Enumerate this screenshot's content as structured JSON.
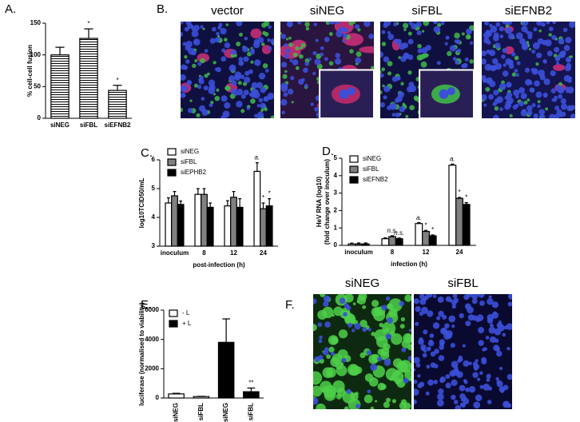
{
  "chart_data": [
    {
      "panel": "A.",
      "type": "bar",
      "categories": [
        "siNEG",
        "siFBL",
        "siEFNB2"
      ],
      "series": [
        {
          "color": "#ffffff",
          "hatch": true,
          "values": [
            100,
            126,
            44
          ],
          "errors": [
            12,
            15,
            8
          ]
        }
      ],
      "ylim": [
        0,
        150
      ],
      "yticks": [
        0,
        50,
        100,
        150
      ],
      "ylabel": "% cell-cell fusion",
      "annotations": [
        {
          "text": "*",
          "category": 1,
          "series": 0
        },
        {
          "text": "*",
          "category": 2,
          "series": 0
        }
      ]
    },
    {
      "panel": "C.",
      "type": "bar",
      "categories": [
        "inoculum",
        "8",
        "12",
        "24"
      ],
      "series": [
        {
          "name": "siNEG",
          "color": "#ffffff",
          "values": [
            4.5,
            4.8,
            4.4,
            5.6
          ],
          "errors": [
            0.18,
            0.2,
            0.18,
            0.3
          ]
        },
        {
          "name": "siFBL",
          "color": "#808080",
          "values": [
            4.75,
            4.8,
            4.7,
            4.3
          ],
          "errors": [
            0.15,
            0.2,
            0.2,
            0.2
          ]
        },
        {
          "name": "siEPHB2",
          "color": "#000000",
          "values": [
            4.45,
            4.35,
            4.35,
            4.4
          ],
          "errors": [
            0.12,
            0.15,
            0.3,
            0.25
          ]
        }
      ],
      "ylim": [
        3,
        6
      ],
      "yticks": [
        3,
        4,
        5,
        6
      ],
      "ylabel": "log10TCID50/mL",
      "xlabel": "post-infection (h)",
      "legend": "upper left",
      "annotations": [
        {
          "text": "a.",
          "category": 3,
          "series": 0
        },
        {
          "text": "*",
          "category": 3,
          "series": 1
        },
        {
          "text": "*",
          "category": 3,
          "series": 2
        }
      ]
    },
    {
      "panel": "D.",
      "type": "bar",
      "categories": [
        "inoculum",
        "8",
        "12",
        "24"
      ],
      "series": [
        {
          "name": "siNEG",
          "color": "#ffffff",
          "values": [
            0.08,
            0.38,
            1.25,
            4.6
          ],
          "errors": [
            0.05,
            0.05,
            0.05,
            0.06
          ]
        },
        {
          "name": "siFBL",
          "color": "#808080",
          "values": [
            0.08,
            0.5,
            0.8,
            2.7
          ],
          "errors": [
            0.06,
            0.05,
            0.06,
            0.05
          ]
        },
        {
          "name": "siEFNB2",
          "color": "#000000",
          "values": [
            0.08,
            0.38,
            0.55,
            2.35
          ],
          "errors": [
            0.06,
            0.04,
            0.05,
            0.1
          ]
        }
      ],
      "ylim": [
        0,
        5
      ],
      "yticks": [
        0,
        1,
        2,
        3,
        4,
        5
      ],
      "ylabel": [
        "HeV RNA (log10)",
        "(fold change over inoculum)"
      ],
      "xlabel": "infection (h)",
      "legend": "upper left",
      "annotations": [
        {
          "text": "n.s.",
          "category": 1,
          "series": 1
        },
        {
          "text": "n.s.",
          "category": 1,
          "series": 2
        },
        {
          "text": "a.",
          "category": 2,
          "series": 0
        },
        {
          "text": "*",
          "category": 2,
          "series": 1
        },
        {
          "text": "*",
          "category": 2,
          "series": 2
        },
        {
          "text": "a.",
          "category": 3,
          "series": 0
        },
        {
          "text": "*",
          "category": 3,
          "series": 1
        },
        {
          "text": "*",
          "category": 3,
          "series": 2
        }
      ]
    },
    {
      "panel": "E.",
      "type": "bar",
      "categories": [
        "siNEG",
        "siFBL",
        "siNEG",
        "siFBL"
      ],
      "series": [
        {
          "name": "- L",
          "color": "#ffffff",
          "values": [
            280,
            100,
            null,
            null
          ],
          "errors": [
            40,
            20,
            null,
            null
          ]
        },
        {
          "name": "+ L",
          "color": "#000000",
          "values": [
            null,
            null,
            3800,
            430
          ],
          "errors": [
            null,
            null,
            1600,
            250
          ]
        }
      ],
      "ylim": [
        0,
        6000
      ],
      "yticks": [
        0,
        2000,
        4000,
        6000
      ],
      "ylabel": "luciferase (normalised to viability)",
      "legend": "upper left",
      "xtick_rotation": 90,
      "annotations": [
        {
          "text": "**",
          "category": 3,
          "series": 1
        }
      ]
    }
  ],
  "images": [
    {
      "panel": "B.",
      "labels": [
        "vector",
        "siNEG",
        "siFBL",
        "siEFNB2"
      ]
    },
    {
      "panel": "F.",
      "labels": [
        "siNEG",
        "siFBL"
      ]
    }
  ]
}
